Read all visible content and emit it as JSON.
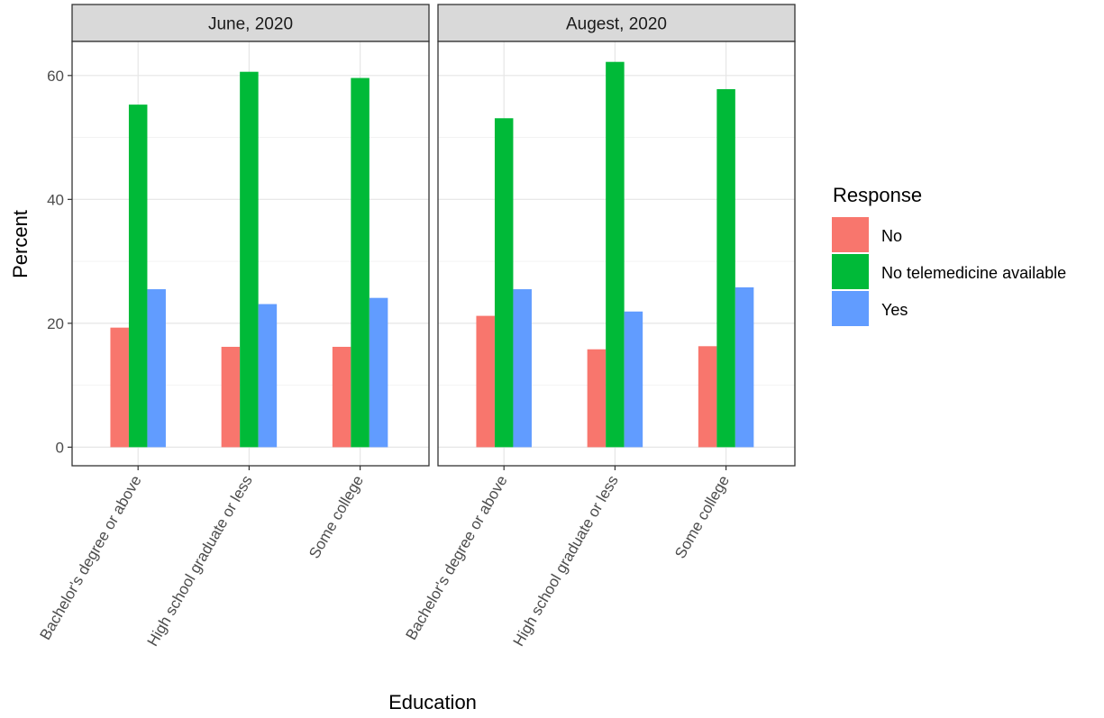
{
  "chart_data": {
    "type": "bar",
    "xlabel": "Education",
    "ylabel": "Percent",
    "ylim": [
      -3,
      65.5
    ],
    "yticks": [
      0,
      20,
      40,
      60
    ],
    "grid": true,
    "legend": {
      "title": "Response",
      "position": "right",
      "entries": [
        "No",
        "No telemedicine available",
        "Yes"
      ]
    },
    "categories": [
      "Bachelor's degree or above",
      "High school graduate or less",
      "Some college"
    ],
    "series_colors": [
      "#F8766D",
      "#00BA38",
      "#619CFF"
    ],
    "facets": [
      {
        "title": "June, 2020",
        "series": [
          {
            "name": "No",
            "values": [
              19.3,
              16.2,
              16.2
            ]
          },
          {
            "name": "No telemedicine available",
            "values": [
              55.3,
              60.6,
              59.6
            ]
          },
          {
            "name": "Yes",
            "values": [
              25.5,
              23.1,
              24.1
            ]
          }
        ]
      },
      {
        "title": "Augest, 2020",
        "series": [
          {
            "name": "No",
            "values": [
              21.2,
              15.8,
              16.3
            ]
          },
          {
            "name": "No telemedicine available",
            "values": [
              53.1,
              62.2,
              57.8
            ]
          },
          {
            "name": "Yes",
            "values": [
              25.5,
              21.9,
              25.8
            ]
          }
        ]
      }
    ]
  }
}
